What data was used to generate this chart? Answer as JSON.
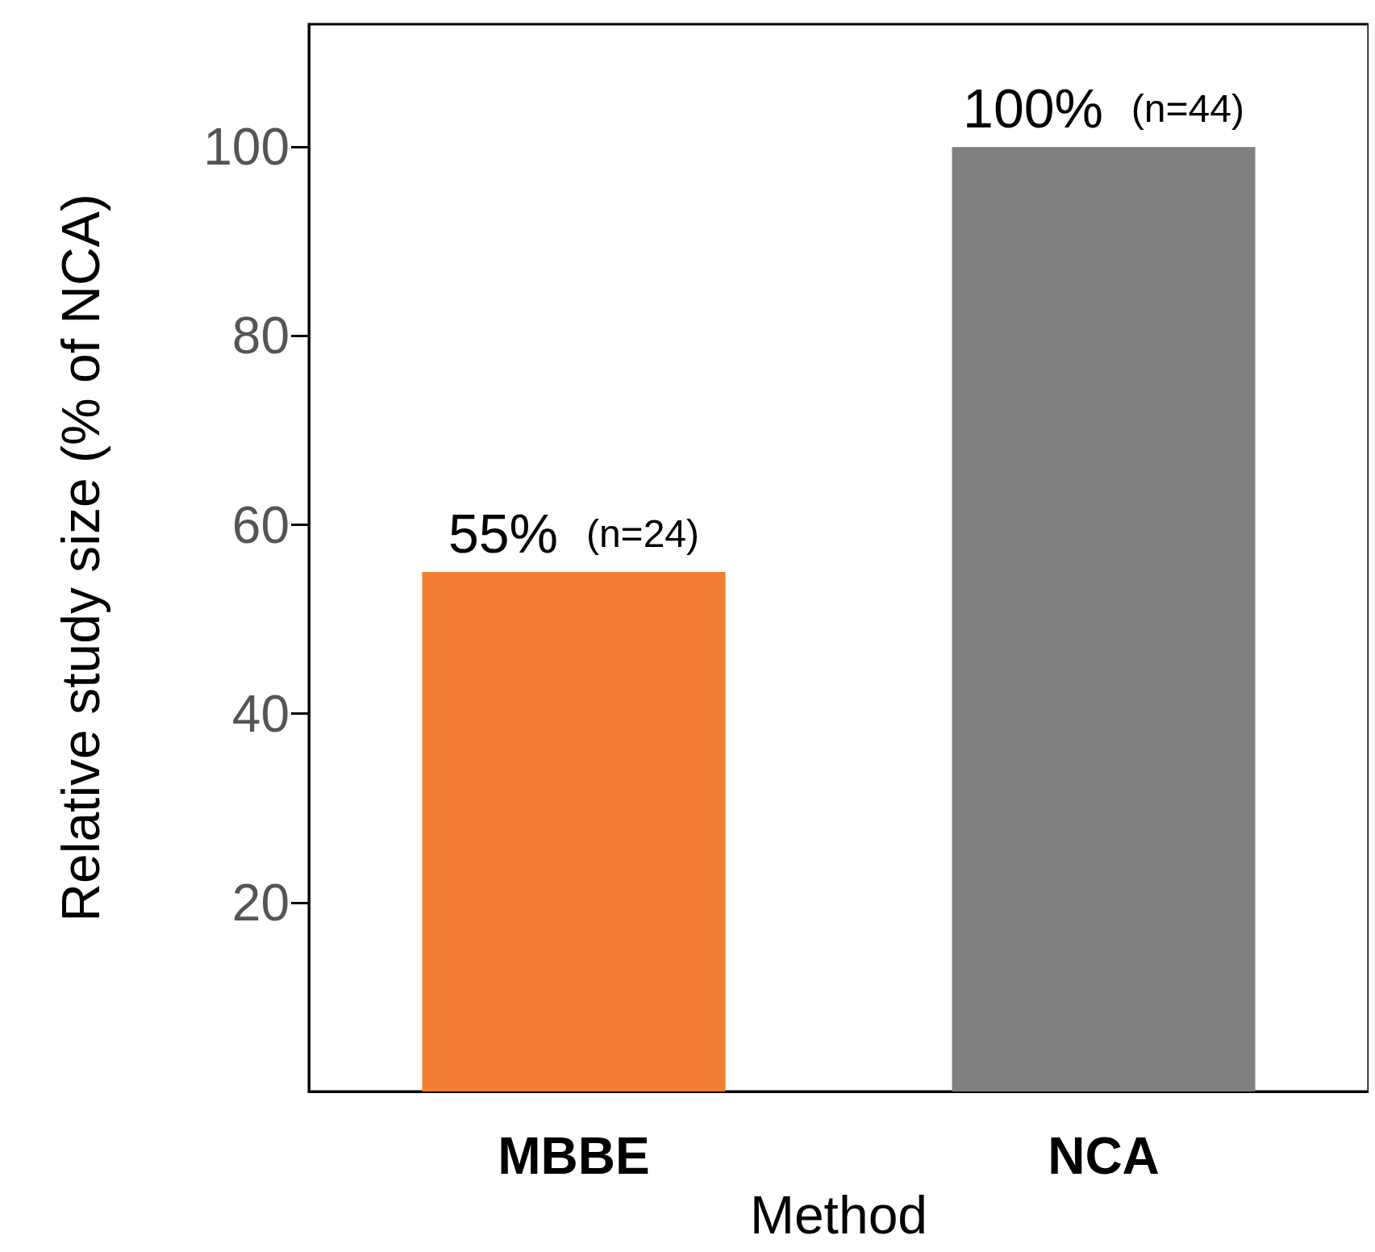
{
  "chart_data": {
    "type": "bar",
    "xlabel": "Method",
    "ylabel": "Relative study size (% of NCA)",
    "categories": [
      "MBBE",
      "NCA"
    ],
    "values": [
      55,
      100
    ],
    "colors": [
      "#f37d33",
      "#7f7f7f"
    ],
    "value_labels": [
      "55% (n=24)",
      "100% (n=44)"
    ],
    "ylim": [
      0,
      113
    ],
    "yticks": [
      20,
      40,
      60,
      80,
      100
    ],
    "grid": false
  }
}
